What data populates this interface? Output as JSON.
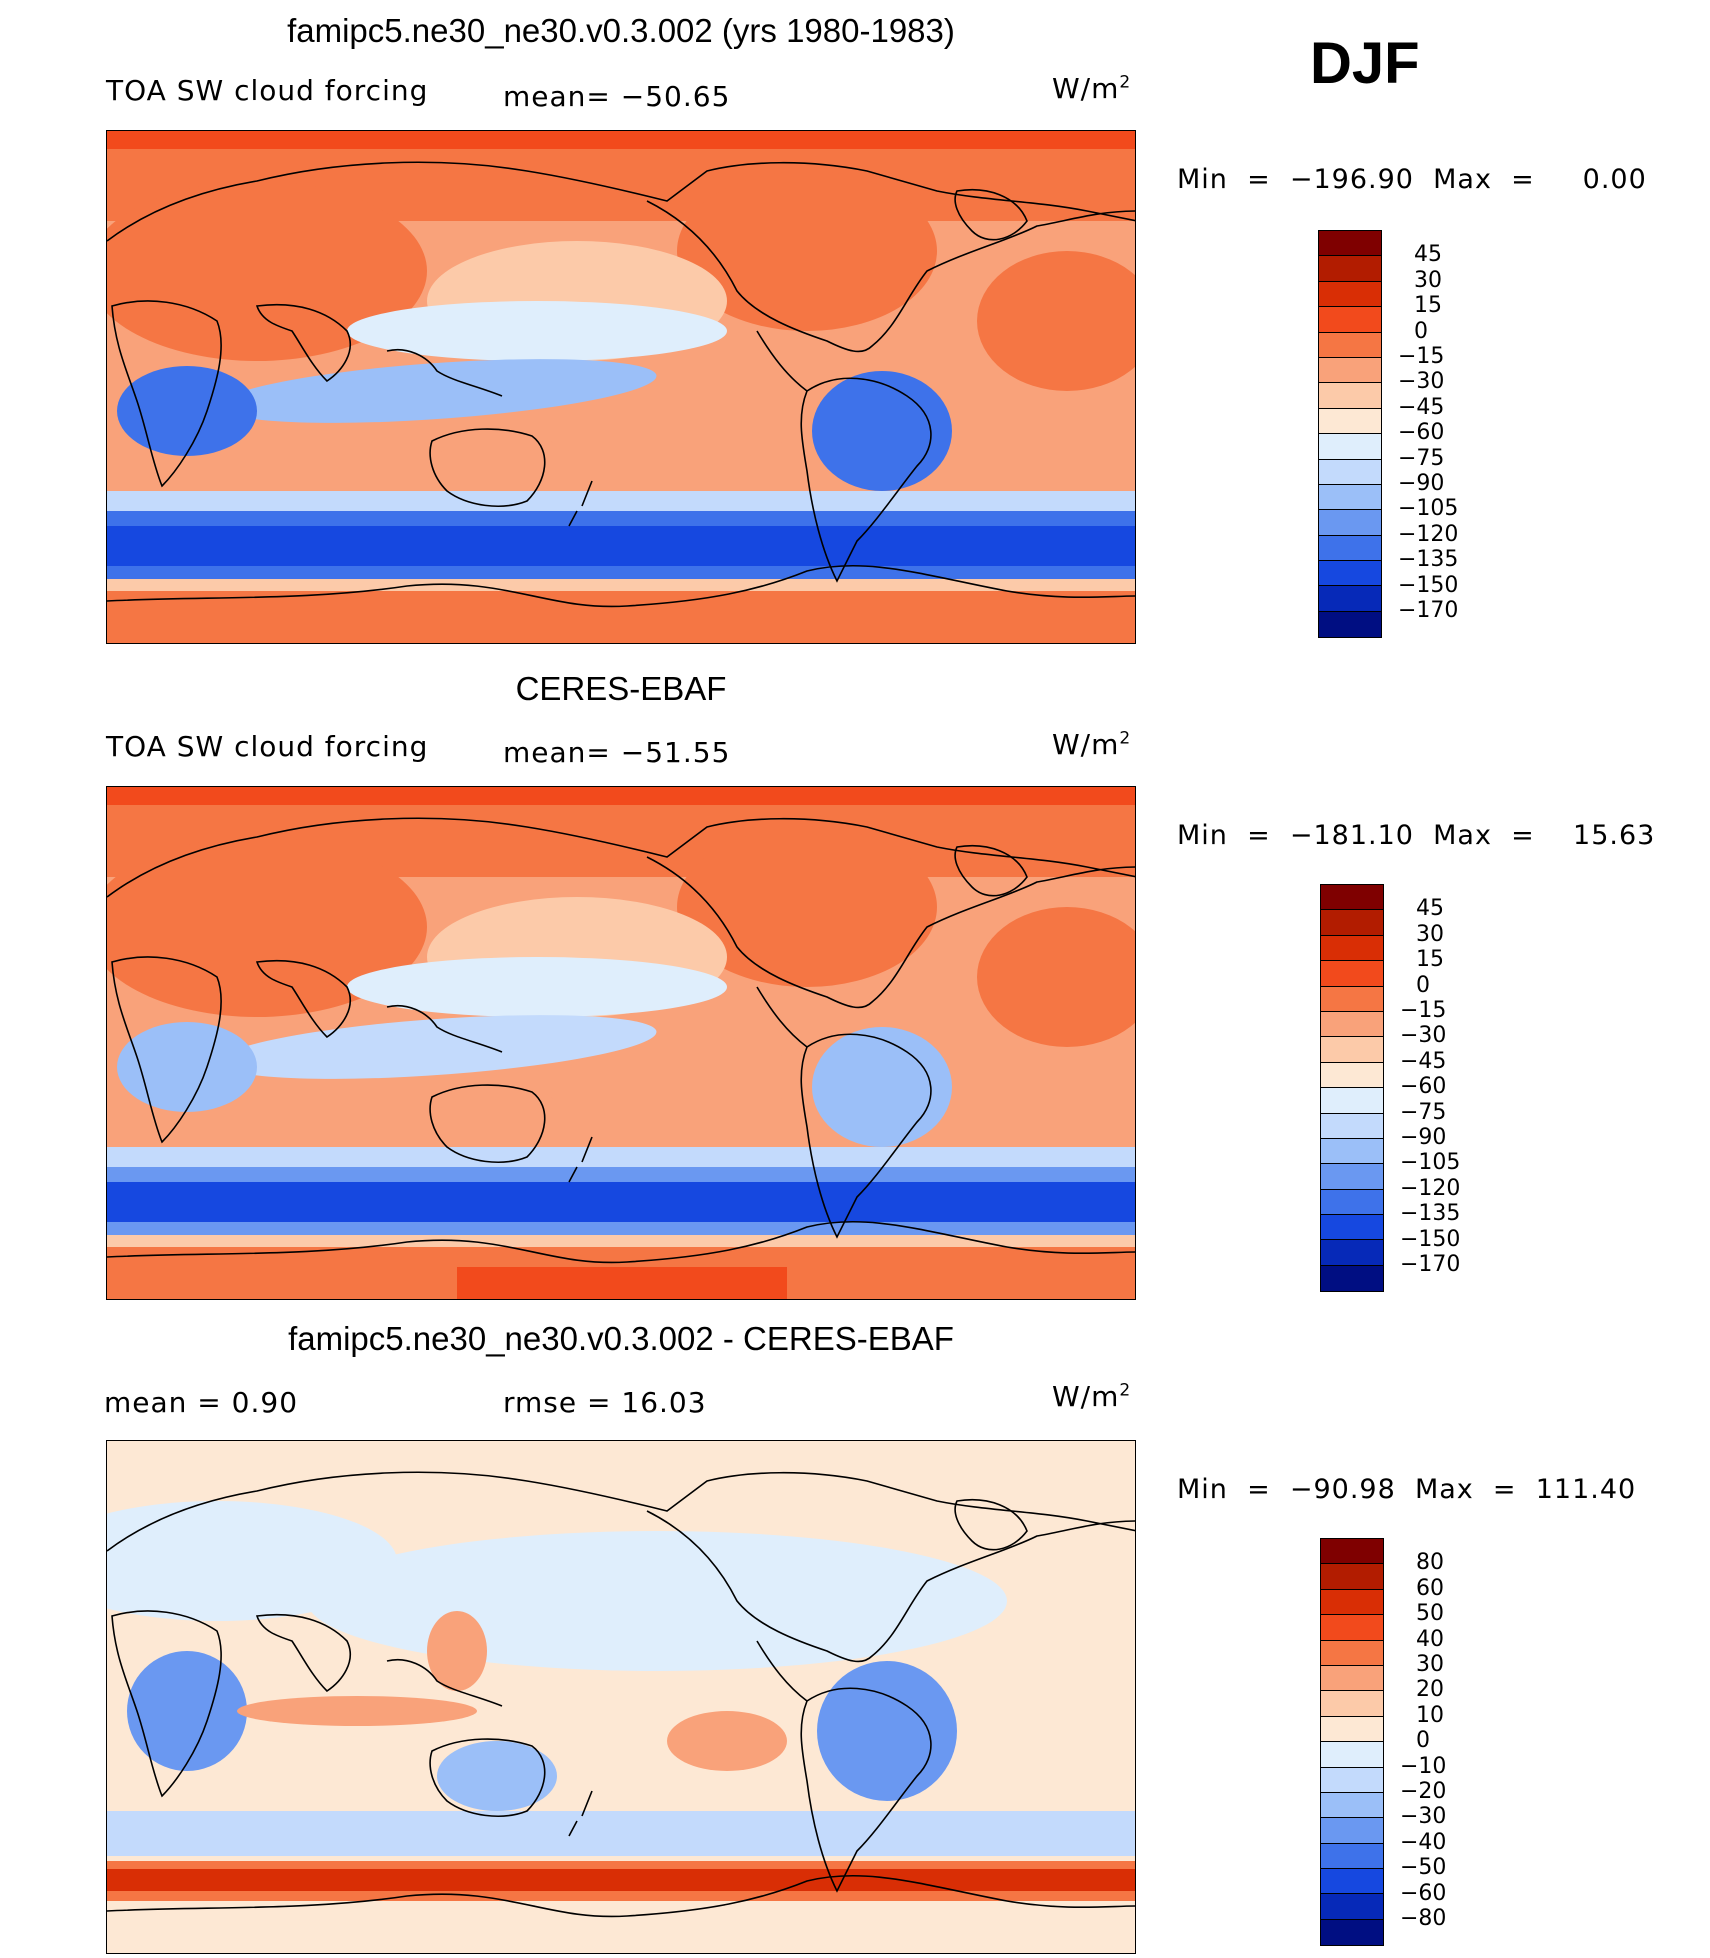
{
  "season": "DJF",
  "panels": [
    {
      "title": "famipc5.ne30_ne30.v0.3.002 (yrs 1980-1983)",
      "left_label": "TOA SW cloud forcing",
      "mid_label": "mean=",
      "mid_value": "−50.65",
      "units": "W/m",
      "units_sup": "2",
      "stats": "Min  =  −196.90  Max  =     0.00",
      "colorbar": {
        "levels": [
          "45",
          "30",
          "15",
          "0",
          "−15",
          "−30",
          "−45",
          "−60",
          "−75",
          "−90",
          "−105",
          "−120",
          "−135",
          "−150",
          "−170"
        ],
        "colors": [
          "#7f0000",
          "#b21c00",
          "#d92e05",
          "#f24a1c",
          "#f57644",
          "#f9a27a",
          "#fccaa9",
          "#fde8d4",
          "#dfeefc",
          "#c3dafc",
          "#9bbff8",
          "#6a98f1",
          "#3e72ea",
          "#1648e0",
          "#0629b8",
          "#000e82"
        ]
      }
    },
    {
      "title": "CERES-EBAF",
      "left_label": "TOA SW cloud forcing",
      "mid_label": "mean=",
      "mid_value": "−51.55",
      "units": "W/m",
      "units_sup": "2",
      "stats": "Min  =  −181.10  Max  =    15.63",
      "colorbar": {
        "levels": [
          "45",
          "30",
          "15",
          "0",
          "−15",
          "−30",
          "−45",
          "−60",
          "−75",
          "−90",
          "−105",
          "−120",
          "−135",
          "−150",
          "−170"
        ],
        "colors": [
          "#7f0000",
          "#b21c00",
          "#d92e05",
          "#f24a1c",
          "#f57644",
          "#f9a27a",
          "#fccaa9",
          "#fde8d4",
          "#dfeefc",
          "#c3dafc",
          "#9bbff8",
          "#6a98f1",
          "#3e72ea",
          "#1648e0",
          "#0629b8",
          "#000e82"
        ]
      }
    },
    {
      "title": "famipc5.ne30_ne30.v0.3.002 - CERES-EBAF",
      "left_label": "mean  =     0.90",
      "mid_label": "rmse  =",
      "mid_value": "16.03",
      "units": "W/m",
      "units_sup": "2",
      "stats": "Min  =  −90.98  Max  =  111.40",
      "colorbar": {
        "levels": [
          "80",
          "60",
          "50",
          "40",
          "30",
          "20",
          "10",
          "0",
          "−10",
          "−20",
          "−30",
          "−40",
          "−50",
          "−60",
          "−80"
        ],
        "colors": [
          "#7f0000",
          "#b21c00",
          "#d92e05",
          "#f24a1c",
          "#f57644",
          "#f9a27a",
          "#fccaa9",
          "#fde8d4",
          "#dfeefc",
          "#c3dafc",
          "#9bbff8",
          "#6a98f1",
          "#3e72ea",
          "#1648e0",
          "#0629b8",
          "#000e82"
        ]
      }
    }
  ],
  "map_colors": {
    "hot": "#f57644",
    "warm": "#f9a27a",
    "mild": "#fccaa9",
    "pale": "#fde8d4",
    "faint_blue": "#dfeefc",
    "light_blue": "#c3dafc",
    "blue": "#9bbff8",
    "mid_blue": "#6a98f1",
    "deep_blue": "#3e72ea",
    "strong_blue": "#1648e0",
    "red": "#f24a1c",
    "dark_red": "#d92e05",
    "coast": "#000000"
  }
}
